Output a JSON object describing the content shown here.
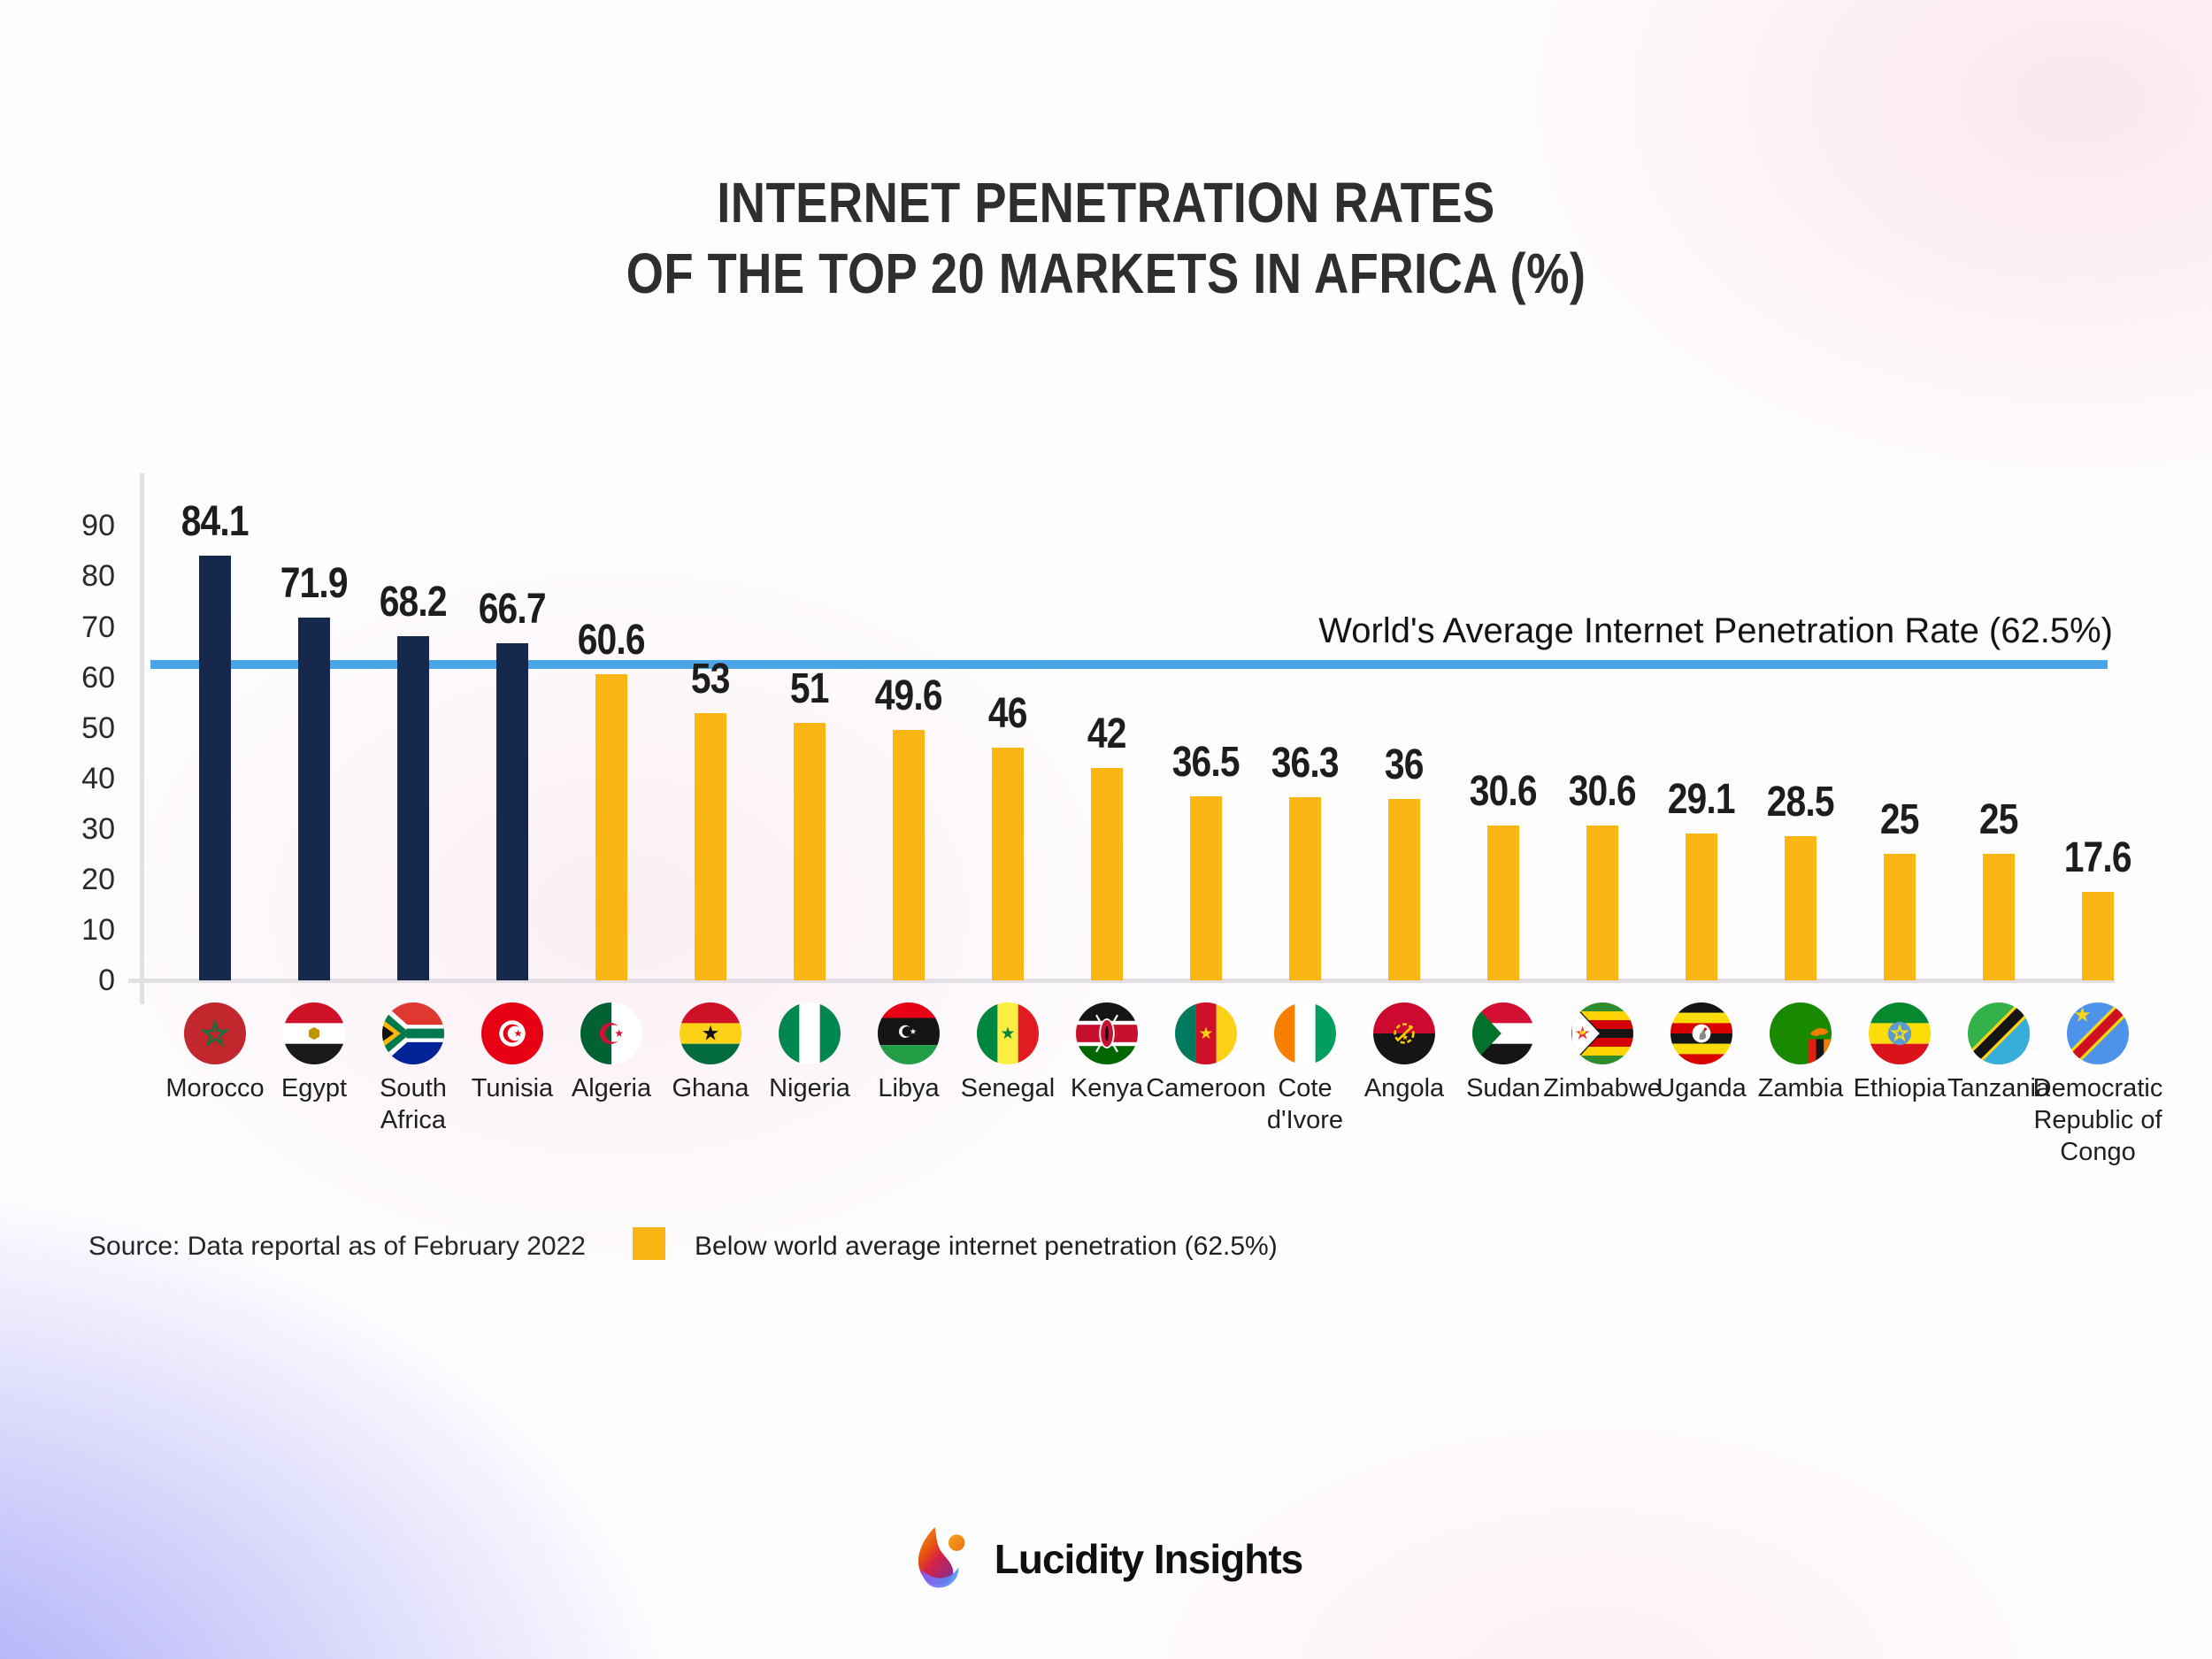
{
  "title": {
    "line1": "INTERNET PENETRATION RATES",
    "line2": "OF THE TOP 20 MARKETS IN AFRICA (%)"
  },
  "chart_data": {
    "type": "bar",
    "title": "Internet Penetration Rates of the Top 20 Markets in Africa (%)",
    "xlabel": "",
    "ylabel": "",
    "ylim": [
      0,
      90
    ],
    "yticks": [
      0,
      10,
      20,
      30,
      40,
      50,
      60,
      70,
      80,
      90
    ],
    "grid": false,
    "legend_position": "bottom-left",
    "categories": [
      "Morocco",
      "Egypt",
      "South Africa",
      "Tunisia",
      "Algeria",
      "Ghana",
      "Nigeria",
      "Libya",
      "Senegal",
      "Kenya",
      "Cameroon",
      "Cote d'Ivore",
      "Angola",
      "Sudan",
      "Zimbabwe",
      "Uganda",
      "Zambia",
      "Ethiopia",
      "Tanzania",
      "Democratic Republic of Congo"
    ],
    "category_display_lines": [
      [
        "Morocco"
      ],
      [
        "Egypt"
      ],
      [
        "South",
        "Africa"
      ],
      [
        "Tunisia"
      ],
      [
        "Algeria"
      ],
      [
        "Ghana"
      ],
      [
        "Nigeria"
      ],
      [
        "Libya"
      ],
      [
        "Senegal"
      ],
      [
        "Kenya"
      ],
      [
        "Cameroon"
      ],
      [
        "Cote",
        "d'Ivore"
      ],
      [
        "Angola"
      ],
      [
        "Sudan"
      ],
      [
        "Zimbabwe"
      ],
      [
        "Uganda"
      ],
      [
        "Zambia"
      ],
      [
        "Ethiopia"
      ],
      [
        "Tanzania"
      ],
      [
        "Democratic",
        "Republic of",
        "Congo"
      ]
    ],
    "values": [
      84.1,
      71.9,
      68.2,
      66.7,
      60.6,
      53,
      51,
      49.6,
      46,
      42,
      36.5,
      36.3,
      36,
      30.6,
      30.6,
      29.1,
      28.5,
      25,
      25,
      17.6
    ],
    "above_average": [
      true,
      true,
      true,
      true,
      false,
      false,
      false,
      false,
      false,
      false,
      false,
      false,
      false,
      false,
      false,
      false,
      false,
      false,
      false,
      false
    ],
    "bar_colors": {
      "above_average": "#16294d",
      "below_average": "#fcb614"
    },
    "average_line": {
      "value": 62.5,
      "label": "World's Average Internet Penetration Rate (62.5%)",
      "color": "#4aa5e6"
    },
    "flags": [
      "flag-morocco",
      "flag-egypt",
      "flag-south-africa",
      "flag-tunisia",
      "flag-algeria",
      "flag-ghana",
      "flag-nigeria",
      "flag-libya",
      "flag-senegal",
      "flag-kenya",
      "flag-cameroon",
      "flag-cote-divore",
      "flag-angola",
      "flag-sudan",
      "flag-zimbabwe",
      "flag-uganda",
      "flag-zambia",
      "flag-ethiopia",
      "flag-tanzania",
      "flag-dr-congo"
    ]
  },
  "legend": {
    "swatch_color": "#fcb614",
    "label": "Below world average internet penetration (62.5%)"
  },
  "source": {
    "text": "Source: Data reportal as of February 2022"
  },
  "footer": {
    "brand": "Lucidity Insights",
    "logo_icon": "lucidity-insights-logo"
  }
}
